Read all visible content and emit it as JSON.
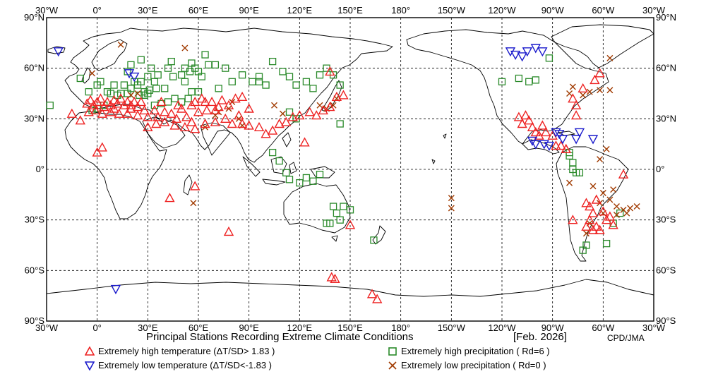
{
  "title": "Principal Stations Recording Extreme Climate Conditions",
  "period": "[Feb. 2026]",
  "credit": "CPD/JMA",
  "lon_labels": [
    "30°W",
    "0°",
    "30°E",
    "60°E",
    "90°E",
    "120°E",
    "150°E",
    "180°",
    "150°W",
    "120°W",
    "90°W",
    "60°W",
    "30°W"
  ],
  "lat_labels": [
    "90°N",
    "60°N",
    "30°N",
    "0°",
    "30°S",
    "60°S",
    "90°S"
  ],
  "legend": {
    "high_temp": "Extremely high temperature (ΔT/SD> 1.83 )",
    "low_temp": "Extremely low temperature  (ΔT/SD<-1.83 )",
    "high_precip": "Extremely high precipitation ( Rd=6 )",
    "low_precip": "Extremely low precipitation ( Rd=0 )"
  },
  "colors": {
    "high_temp": "#ee2222",
    "low_temp": "#1a1acc",
    "high_precip": "#2a8a2a",
    "low_precip": "#a03a00"
  },
  "map_extent": {
    "lon_min": -30,
    "lon_max": 330,
    "lat_min": -90,
    "lat_max": 90
  },
  "stations": {
    "high_temp": [
      [
        -6,
        39
      ],
      [
        -4,
        41
      ],
      [
        -2,
        38
      ],
      [
        0,
        40
      ],
      [
        2,
        42
      ],
      [
        4,
        37
      ],
      [
        6,
        40
      ],
      [
        8,
        38
      ],
      [
        10,
        41
      ],
      [
        12,
        39
      ],
      [
        14,
        42
      ],
      [
        16,
        38
      ],
      [
        18,
        40
      ],
      [
        20,
        38
      ],
      [
        22,
        40
      ],
      [
        24,
        37
      ],
      [
        26,
        40
      ],
      [
        -1,
        35
      ],
      [
        3,
        33
      ],
      [
        8,
        34
      ],
      [
        13,
        33
      ],
      [
        18,
        33
      ],
      [
        24,
        32
      ],
      [
        30,
        31
      ],
      [
        36,
        31
      ],
      [
        34,
        35
      ],
      [
        40,
        34
      ],
      [
        44,
        33
      ],
      [
        47,
        30
      ],
      [
        50,
        36
      ],
      [
        53,
        31
      ],
      [
        56,
        28
      ],
      [
        60,
        34
      ],
      [
        65,
        35
      ],
      [
        70,
        35
      ],
      [
        48,
        38
      ],
      [
        56,
        38
      ],
      [
        62,
        42
      ],
      [
        68,
        40
      ],
      [
        72,
        37
      ],
      [
        64,
        40
      ],
      [
        -5,
        34
      ],
      [
        10,
        36
      ],
      [
        20,
        36
      ],
      [
        28,
        35
      ],
      [
        35,
        27
      ],
      [
        40,
        28
      ],
      [
        46,
        26
      ],
      [
        52,
        25
      ],
      [
        58,
        24
      ],
      [
        64,
        27
      ],
      [
        70,
        28
      ],
      [
        76,
        30
      ],
      [
        80,
        27
      ],
      [
        86,
        27
      ],
      [
        90,
        26
      ],
      [
        96,
        25
      ],
      [
        100,
        21
      ],
      [
        104,
        23
      ],
      [
        108,
        27
      ],
      [
        112,
        28
      ],
      [
        116,
        31
      ],
      [
        120,
        32
      ],
      [
        126,
        34
      ],
      [
        130,
        32
      ],
      [
        134,
        35
      ],
      [
        138,
        37
      ],
      [
        142,
        43
      ],
      [
        146,
        44
      ],
      [
        84,
        32
      ],
      [
        78,
        38
      ],
      [
        82,
        42
      ],
      [
        74,
        41
      ],
      [
        86,
        43
      ],
      [
        90,
        36
      ],
      [
        58,
        40
      ],
      [
        38,
        40
      ],
      [
        -10,
        29
      ],
      [
        -15,
        33
      ],
      [
        30,
        25
      ],
      [
        3,
        13
      ],
      [
        0,
        10
      ],
      [
        43,
        -17
      ],
      [
        58,
        -10
      ],
      [
        78,
        -37
      ],
      [
        123,
        16
      ],
      [
        163,
        -74
      ],
      [
        166,
        -77
      ],
      [
        141,
        -65
      ],
      [
        139,
        -64
      ],
      [
        150,
        -33
      ],
      [
        138,
        58
      ],
      [
        -106,
        32
      ],
      [
        -104,
        29
      ],
      [
        -102,
        25
      ],
      [
        -100,
        22
      ],
      [
        -98,
        20
      ],
      [
        -96,
        26
      ],
      [
        -94,
        22
      ],
      [
        -90,
        20
      ],
      [
        -110,
        31
      ],
      [
        -108,
        27
      ],
      [
        -88,
        14
      ],
      [
        -85,
        14
      ],
      [
        -82,
        12
      ],
      [
        -76,
        38
      ],
      [
        -78,
        42
      ],
      [
        -72,
        48
      ],
      [
        -65,
        53
      ],
      [
        -62,
        57
      ],
      [
        -54,
        -33
      ],
      [
        -56,
        -28
      ],
      [
        -60,
        -25
      ],
      [
        -58,
        -30
      ],
      [
        -62,
        -36
      ],
      [
        -66,
        -36
      ],
      [
        -64,
        -34
      ],
      [
        -70,
        -34
      ],
      [
        -68,
        -30
      ],
      [
        -66,
        -26
      ],
      [
        -70,
        -20
      ],
      [
        -64,
        -18
      ],
      [
        -68,
        -22
      ],
      [
        -48,
        -3
      ],
      [
        -78,
        -30
      ],
      [
        -82,
        12
      ],
      [
        -76,
        32
      ]
    ],
    "low_temp": [
      [
        -23,
        70
      ],
      [
        19,
        57
      ],
      [
        22,
        55
      ],
      [
        -115,
        70
      ],
      [
        -112,
        68
      ],
      [
        -108,
        67
      ],
      [
        -105,
        70
      ],
      [
        -100,
        72
      ],
      [
        -96,
        70
      ],
      [
        -88,
        22
      ],
      [
        -86,
        21
      ],
      [
        -84,
        18
      ],
      [
        -76,
        18
      ],
      [
        -102,
        17
      ],
      [
        -100,
        15
      ],
      [
        -95,
        15
      ],
      [
        -92,
        14
      ],
      [
        -74,
        22
      ],
      [
        -66,
        18
      ],
      [
        11,
        -71
      ]
    ],
    "high_precip": [
      [
        -28,
        38
      ],
      [
        -3,
        35
      ],
      [
        0,
        36
      ],
      [
        4,
        38
      ],
      [
        8,
        45
      ],
      [
        12,
        44
      ],
      [
        16,
        50
      ],
      [
        20,
        48
      ],
      [
        25,
        44
      ],
      [
        28,
        46
      ],
      [
        31,
        47
      ],
      [
        35,
        48
      ],
      [
        40,
        48
      ],
      [
        45,
        55
      ],
      [
        50,
        56
      ],
      [
        52,
        52
      ],
      [
        55,
        58
      ],
      [
        58,
        60
      ],
      [
        62,
        55
      ],
      [
        66,
        62
      ],
      [
        70,
        62
      ],
      [
        76,
        60
      ],
      [
        80,
        52
      ],
      [
        86,
        56
      ],
      [
        92,
        52
      ],
      [
        96,
        55
      ],
      [
        104,
        64
      ],
      [
        110,
        58
      ],
      [
        114,
        55
      ],
      [
        118,
        50
      ],
      [
        124,
        52
      ],
      [
        128,
        48
      ],
      [
        132,
        56
      ],
      [
        136,
        60
      ],
      [
        140,
        56
      ],
      [
        144,
        50
      ],
      [
        114,
        34
      ],
      [
        118,
        30
      ],
      [
        104,
        10
      ],
      [
        108,
        5
      ],
      [
        112,
        -2
      ],
      [
        114,
        -6
      ],
      [
        120,
        -8
      ],
      [
        124,
        -5
      ],
      [
        128,
        -7
      ],
      [
        132,
        -3
      ],
      [
        -10,
        54
      ],
      [
        2,
        52
      ],
      [
        6,
        46
      ],
      [
        -5,
        46
      ],
      [
        0,
        50
      ],
      [
        24,
        50
      ],
      [
        28,
        44
      ],
      [
        18,
        45
      ],
      [
        14,
        45
      ],
      [
        10,
        50
      ],
      [
        30,
        45
      ],
      [
        34,
        38
      ],
      [
        38,
        39
      ],
      [
        42,
        40
      ],
      [
        46,
        42
      ],
      [
        50,
        40
      ],
      [
        54,
        42
      ],
      [
        34,
        52
      ],
      [
        30,
        55
      ],
      [
        26,
        52
      ],
      [
        22,
        52
      ],
      [
        18,
        58
      ],
      [
        20,
        62
      ],
      [
        26,
        65
      ],
      [
        32,
        60
      ],
      [
        36,
        56
      ],
      [
        42,
        60
      ],
      [
        44,
        64
      ],
      [
        52,
        60
      ],
      [
        56,
        63
      ],
      [
        60,
        58
      ],
      [
        64,
        68
      ],
      [
        96,
        52
      ],
      [
        100,
        50
      ],
      [
        72,
        48
      ],
      [
        60,
        46
      ],
      [
        56,
        46
      ],
      [
        140,
        -22
      ],
      [
        142,
        -26
      ],
      [
        146,
        -22
      ],
      [
        150,
        -24
      ],
      [
        136,
        -32
      ],
      [
        138,
        -32
      ],
      [
        144,
        -30
      ],
      [
        164,
        -42
      ],
      [
        144,
        27
      ],
      [
        -120,
        52
      ],
      [
        -110,
        54
      ],
      [
        -104,
        52
      ],
      [
        -100,
        53
      ],
      [
        -92,
        66
      ],
      [
        -80,
        10
      ],
      [
        -80,
        8
      ],
      [
        -78,
        4
      ],
      [
        -78,
        0
      ],
      [
        -76,
        -2
      ],
      [
        -74,
        -2
      ],
      [
        -50,
        -26
      ],
      [
        -54,
        -32
      ],
      [
        -58,
        -44
      ],
      [
        -70,
        -45
      ],
      [
        -72,
        -48
      ]
    ],
    "low_precip": [
      [
        -3,
        57
      ],
      [
        14,
        74
      ],
      [
        52,
        72
      ],
      [
        -150,
        -17
      ],
      [
        -150,
        -23
      ],
      [
        57,
        -20
      ],
      [
        132,
        38
      ],
      [
        136,
        36
      ],
      [
        140,
        38
      ],
      [
        142,
        42
      ],
      [
        105,
        38
      ],
      [
        110,
        33
      ],
      [
        84,
        30
      ],
      [
        86,
        26
      ],
      [
        64,
        25
      ],
      [
        70,
        32
      ],
      [
        72,
        34
      ],
      [
        80,
        40
      ],
      [
        78,
        36
      ],
      [
        24,
        45
      ],
      [
        20,
        44
      ],
      [
        -56,
        66
      ],
      [
        -78,
        49
      ],
      [
        -80,
        45
      ],
      [
        -72,
        44
      ],
      [
        -68,
        46
      ],
      [
        -62,
        47
      ],
      [
        -56,
        47
      ],
      [
        -58,
        12
      ],
      [
        -62,
        6
      ],
      [
        -60,
        -14
      ],
      [
        -56,
        -18
      ],
      [
        -52,
        -22
      ],
      [
        -48,
        -24
      ],
      [
        -44,
        -23
      ],
      [
        -52,
        -27
      ],
      [
        -46,
        -26
      ],
      [
        -40,
        -22
      ],
      [
        -66,
        -10
      ],
      [
        -62,
        -20
      ],
      [
        -68,
        -32
      ],
      [
        -70,
        -38
      ],
      [
        -60,
        -26
      ],
      [
        -54,
        -12
      ],
      [
        -80,
        -8
      ]
    ]
  }
}
